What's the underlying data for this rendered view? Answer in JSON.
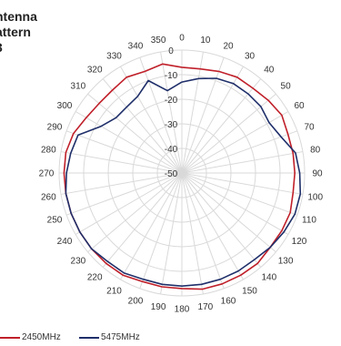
{
  "chart_data": {
    "type": "polar-line",
    "title_lines": [
      "ntenna",
      "attern",
      "3"
    ],
    "angle_labels": [
      "0",
      "10",
      "20",
      "30",
      "40",
      "50",
      "60",
      "70",
      "80",
      "90",
      "100",
      "110",
      "120",
      "130",
      "140",
      "150",
      "160",
      "170",
      "180",
      "190",
      "200",
      "210",
      "220",
      "230",
      "240",
      "250",
      "260",
      "270",
      "280",
      "290",
      "300",
      "310",
      "320",
      "330",
      "340",
      "350"
    ],
    "radial_labels": [
      "0",
      "-10",
      "-20",
      "-30",
      "-40",
      "-50"
    ],
    "rlim": [
      -50,
      0
    ],
    "grid": true,
    "legend_position": "bottom-left",
    "series": [
      {
        "name": "2450MHz",
        "color": "#c0202a",
        "angles": [
          0,
          10,
          20,
          30,
          40,
          50,
          60,
          70,
          80,
          90,
          100,
          110,
          120,
          130,
          140,
          150,
          160,
          170,
          180,
          190,
          200,
          210,
          220,
          230,
          240,
          250,
          260,
          270,
          280,
          290,
          300,
          310,
          320,
          330,
          340,
          350
        ],
        "values": [
          -7,
          -7,
          -6,
          -5,
          -5,
          -4,
          -3,
          -4,
          -4,
          -4,
          -4,
          -3,
          -3,
          -3,
          -2,
          -2,
          -2,
          -2,
          -3,
          -3,
          -3,
          -2,
          -2,
          -2,
          -2,
          -2,
          -2,
          -2,
          -2,
          -3,
          -5,
          -6,
          -6,
          -5,
          -6,
          -5
        ]
      },
      {
        "name": "5475MHz",
        "color": "#1f2f6a",
        "angles": [
          0,
          10,
          20,
          30,
          40,
          50,
          60,
          70,
          80,
          90,
          100,
          110,
          120,
          130,
          140,
          150,
          160,
          170,
          180,
          190,
          200,
          210,
          220,
          230,
          240,
          250,
          260,
          270,
          280,
          290,
          300,
          310,
          320,
          330,
          340,
          350
        ],
        "values": [
          -13,
          -11,
          -9,
          -8,
          -8,
          -8,
          -9,
          -7,
          -3,
          -2,
          -1,
          -1,
          -2,
          -3,
          -4,
          -4,
          -4,
          -4,
          -4,
          -4,
          -4,
          -3,
          -3,
          -2,
          -2,
          -2,
          -2,
          -3,
          -4,
          -5,
          -12,
          -15,
          -15,
          -14,
          -10,
          -16
        ]
      }
    ]
  }
}
